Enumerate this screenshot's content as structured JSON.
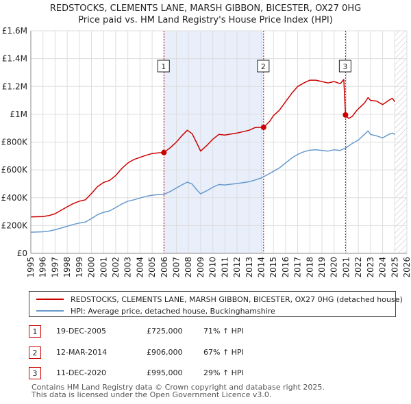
{
  "chart_data": {
    "type": "line",
    "title": "REDSTOCKS, CLEMENTS LANE, MARSH GIBBON, BICESTER, OX27 0HG",
    "subtitle": "Price paid vs. HM Land Registry's House Price Index (HPI)",
    "xlim": [
      1995,
      2026
    ],
    "ylim": [
      0,
      1600000
    ],
    "x_ticks": [
      "1995",
      "1996",
      "1997",
      "1998",
      "1999",
      "2000",
      "2001",
      "2002",
      "2003",
      "2004",
      "2005",
      "2006",
      "2007",
      "2008",
      "2009",
      "2010",
      "2011",
      "2012",
      "2013",
      "2014",
      "2015",
      "2016",
      "2017",
      "2018",
      "2019",
      "2020",
      "2021",
      "2022",
      "2023",
      "2024",
      "2025",
      "2026"
    ],
    "y_ticks": [
      {
        "value": 0,
        "label": "£0"
      },
      {
        "value": 200000,
        "label": "£200K"
      },
      {
        "value": 400000,
        "label": "£400K"
      },
      {
        "value": 600000,
        "label": "£600K"
      },
      {
        "value": 800000,
        "label": "£800K"
      },
      {
        "value": 1000000,
        "label": "£1M"
      },
      {
        "value": 1200000,
        "label": "£1.2M"
      },
      {
        "value": 1400000,
        "label": "£1.4M"
      },
      {
        "value": 1600000,
        "label": "£1.6M"
      }
    ],
    "grid": true,
    "series": [
      {
        "name": "REDSTOCKS, CLEMENTS LANE, MARSH GIBBON, BICESTER, OX27 0HG (detached house)",
        "color": "#cc0000",
        "points": [
          [
            1995.0,
            262000
          ],
          [
            1996.0,
            265000
          ],
          [
            1996.5,
            272000
          ],
          [
            1997.0,
            285000
          ],
          [
            1997.5,
            310000
          ],
          [
            1998.0,
            335000
          ],
          [
            1998.5,
            358000
          ],
          [
            1999.0,
            375000
          ],
          [
            1999.5,
            385000
          ],
          [
            2000.0,
            430000
          ],
          [
            2000.5,
            480000
          ],
          [
            2001.0,
            510000
          ],
          [
            2001.5,
            525000
          ],
          [
            2002.0,
            560000
          ],
          [
            2002.5,
            610000
          ],
          [
            2003.0,
            650000
          ],
          [
            2003.5,
            675000
          ],
          [
            2004.0,
            690000
          ],
          [
            2004.5,
            705000
          ],
          [
            2005.0,
            718000
          ],
          [
            2005.5,
            722000
          ],
          [
            2005.97,
            725000
          ],
          [
            2006.5,
            760000
          ],
          [
            2007.0,
            800000
          ],
          [
            2007.5,
            850000
          ],
          [
            2007.9,
            885000
          ],
          [
            2008.3,
            860000
          ],
          [
            2008.7,
            790000
          ],
          [
            2009.0,
            735000
          ],
          [
            2009.5,
            775000
          ],
          [
            2010.0,
            820000
          ],
          [
            2010.5,
            855000
          ],
          [
            2011.0,
            850000
          ],
          [
            2011.5,
            858000
          ],
          [
            2012.0,
            865000
          ],
          [
            2012.5,
            875000
          ],
          [
            2013.0,
            885000
          ],
          [
            2013.5,
            905000
          ],
          [
            2014.19,
            906000
          ],
          [
            2014.7,
            950000
          ],
          [
            2015.0,
            990000
          ],
          [
            2015.5,
            1030000
          ],
          [
            2016.0,
            1090000
          ],
          [
            2016.5,
            1150000
          ],
          [
            2017.0,
            1200000
          ],
          [
            2017.5,
            1225000
          ],
          [
            2018.0,
            1245000
          ],
          [
            2018.5,
            1245000
          ],
          [
            2019.0,
            1235000
          ],
          [
            2019.5,
            1225000
          ],
          [
            2020.0,
            1235000
          ],
          [
            2020.5,
            1220000
          ],
          [
            2020.8,
            1250000
          ],
          [
            2020.94,
            995000
          ],
          [
            2021.2,
            970000
          ],
          [
            2021.5,
            985000
          ],
          [
            2021.8,
            1020000
          ],
          [
            2022.0,
            1040000
          ],
          [
            2022.5,
            1080000
          ],
          [
            2022.8,
            1120000
          ],
          [
            2023.0,
            1100000
          ],
          [
            2023.5,
            1095000
          ],
          [
            2024.0,
            1070000
          ],
          [
            2024.5,
            1100000
          ],
          [
            2024.8,
            1115000
          ],
          [
            2025.0,
            1090000
          ]
        ]
      },
      {
        "name": "HPI: Average price, detached house, Buckinghamshire",
        "color": "#6699cc",
        "points": [
          [
            1995.0,
            152000
          ],
          [
            1996.0,
            155000
          ],
          [
            1996.5,
            160000
          ],
          [
            1997.0,
            170000
          ],
          [
            1997.5,
            182000
          ],
          [
            1998.0,
            195000
          ],
          [
            1998.5,
            208000
          ],
          [
            1999.0,
            218000
          ],
          [
            1999.5,
            225000
          ],
          [
            2000.0,
            250000
          ],
          [
            2000.5,
            278000
          ],
          [
            2001.0,
            295000
          ],
          [
            2001.5,
            305000
          ],
          [
            2002.0,
            330000
          ],
          [
            2002.5,
            355000
          ],
          [
            2003.0,
            375000
          ],
          [
            2003.5,
            385000
          ],
          [
            2004.0,
            398000
          ],
          [
            2004.5,
            410000
          ],
          [
            2005.0,
            418000
          ],
          [
            2005.5,
            423000
          ],
          [
            2006.0,
            425000
          ],
          [
            2006.5,
            445000
          ],
          [
            2007.0,
            470000
          ],
          [
            2007.5,
            495000
          ],
          [
            2007.9,
            512000
          ],
          [
            2008.3,
            498000
          ],
          [
            2008.7,
            455000
          ],
          [
            2009.0,
            428000
          ],
          [
            2009.5,
            450000
          ],
          [
            2010.0,
            475000
          ],
          [
            2010.5,
            495000
          ],
          [
            2011.0,
            492000
          ],
          [
            2011.5,
            497000
          ],
          [
            2012.0,
            502000
          ],
          [
            2012.5,
            508000
          ],
          [
            2013.0,
            515000
          ],
          [
            2013.5,
            528000
          ],
          [
            2014.0,
            542000
          ],
          [
            2014.5,
            565000
          ],
          [
            2015.0,
            590000
          ],
          [
            2015.5,
            615000
          ],
          [
            2016.0,
            650000
          ],
          [
            2016.5,
            685000
          ],
          [
            2017.0,
            712000
          ],
          [
            2017.5,
            730000
          ],
          [
            2018.0,
            742000
          ],
          [
            2018.5,
            745000
          ],
          [
            2019.0,
            740000
          ],
          [
            2019.5,
            735000
          ],
          [
            2020.0,
            745000
          ],
          [
            2020.5,
            740000
          ],
          [
            2021.0,
            760000
          ],
          [
            2021.5,
            790000
          ],
          [
            2022.0,
            815000
          ],
          [
            2022.5,
            855000
          ],
          [
            2022.8,
            880000
          ],
          [
            2023.0,
            855000
          ],
          [
            2023.5,
            845000
          ],
          [
            2024.0,
            830000
          ],
          [
            2024.5,
            855000
          ],
          [
            2024.8,
            865000
          ],
          [
            2025.0,
            855000
          ]
        ]
      }
    ],
    "sales": [
      {
        "id": "1",
        "x": 2005.97,
        "value": 725000
      },
      {
        "id": "2",
        "x": 2014.19,
        "value": 906000
      },
      {
        "id": "3",
        "x": 2020.94,
        "value": 995000
      }
    ],
    "shaded_ranges": [
      [
        2005.97,
        2014.19
      ]
    ],
    "forecast_start": 2025.0
  },
  "legend": {
    "red_label": "REDSTOCKS, CLEMENTS LANE, MARSH GIBBON, BICESTER, OX27 0HG (detached house)",
    "blue_label": "HPI: Average price, detached house, Buckinghamshire"
  },
  "sales_table": [
    {
      "id": "1",
      "date": "19-DEC-2005",
      "price": "£725,000",
      "hpi": "71% ↑ HPI"
    },
    {
      "id": "2",
      "date": "12-MAR-2014",
      "price": "£906,000",
      "hpi": "67% ↑ HPI"
    },
    {
      "id": "3",
      "date": "11-DEC-2020",
      "price": "£995,000",
      "hpi": "29% ↑ HPI"
    }
  ],
  "footer": {
    "line1": "Contains HM Land Registry data © Crown copyright and database right 2025.",
    "line2": "This data is licensed under the Open Government Licence v3.0."
  },
  "colors": {
    "red": "#cc0000",
    "blue": "#6699cc",
    "shade": "#e8eefa",
    "grid": "#dddddd"
  }
}
